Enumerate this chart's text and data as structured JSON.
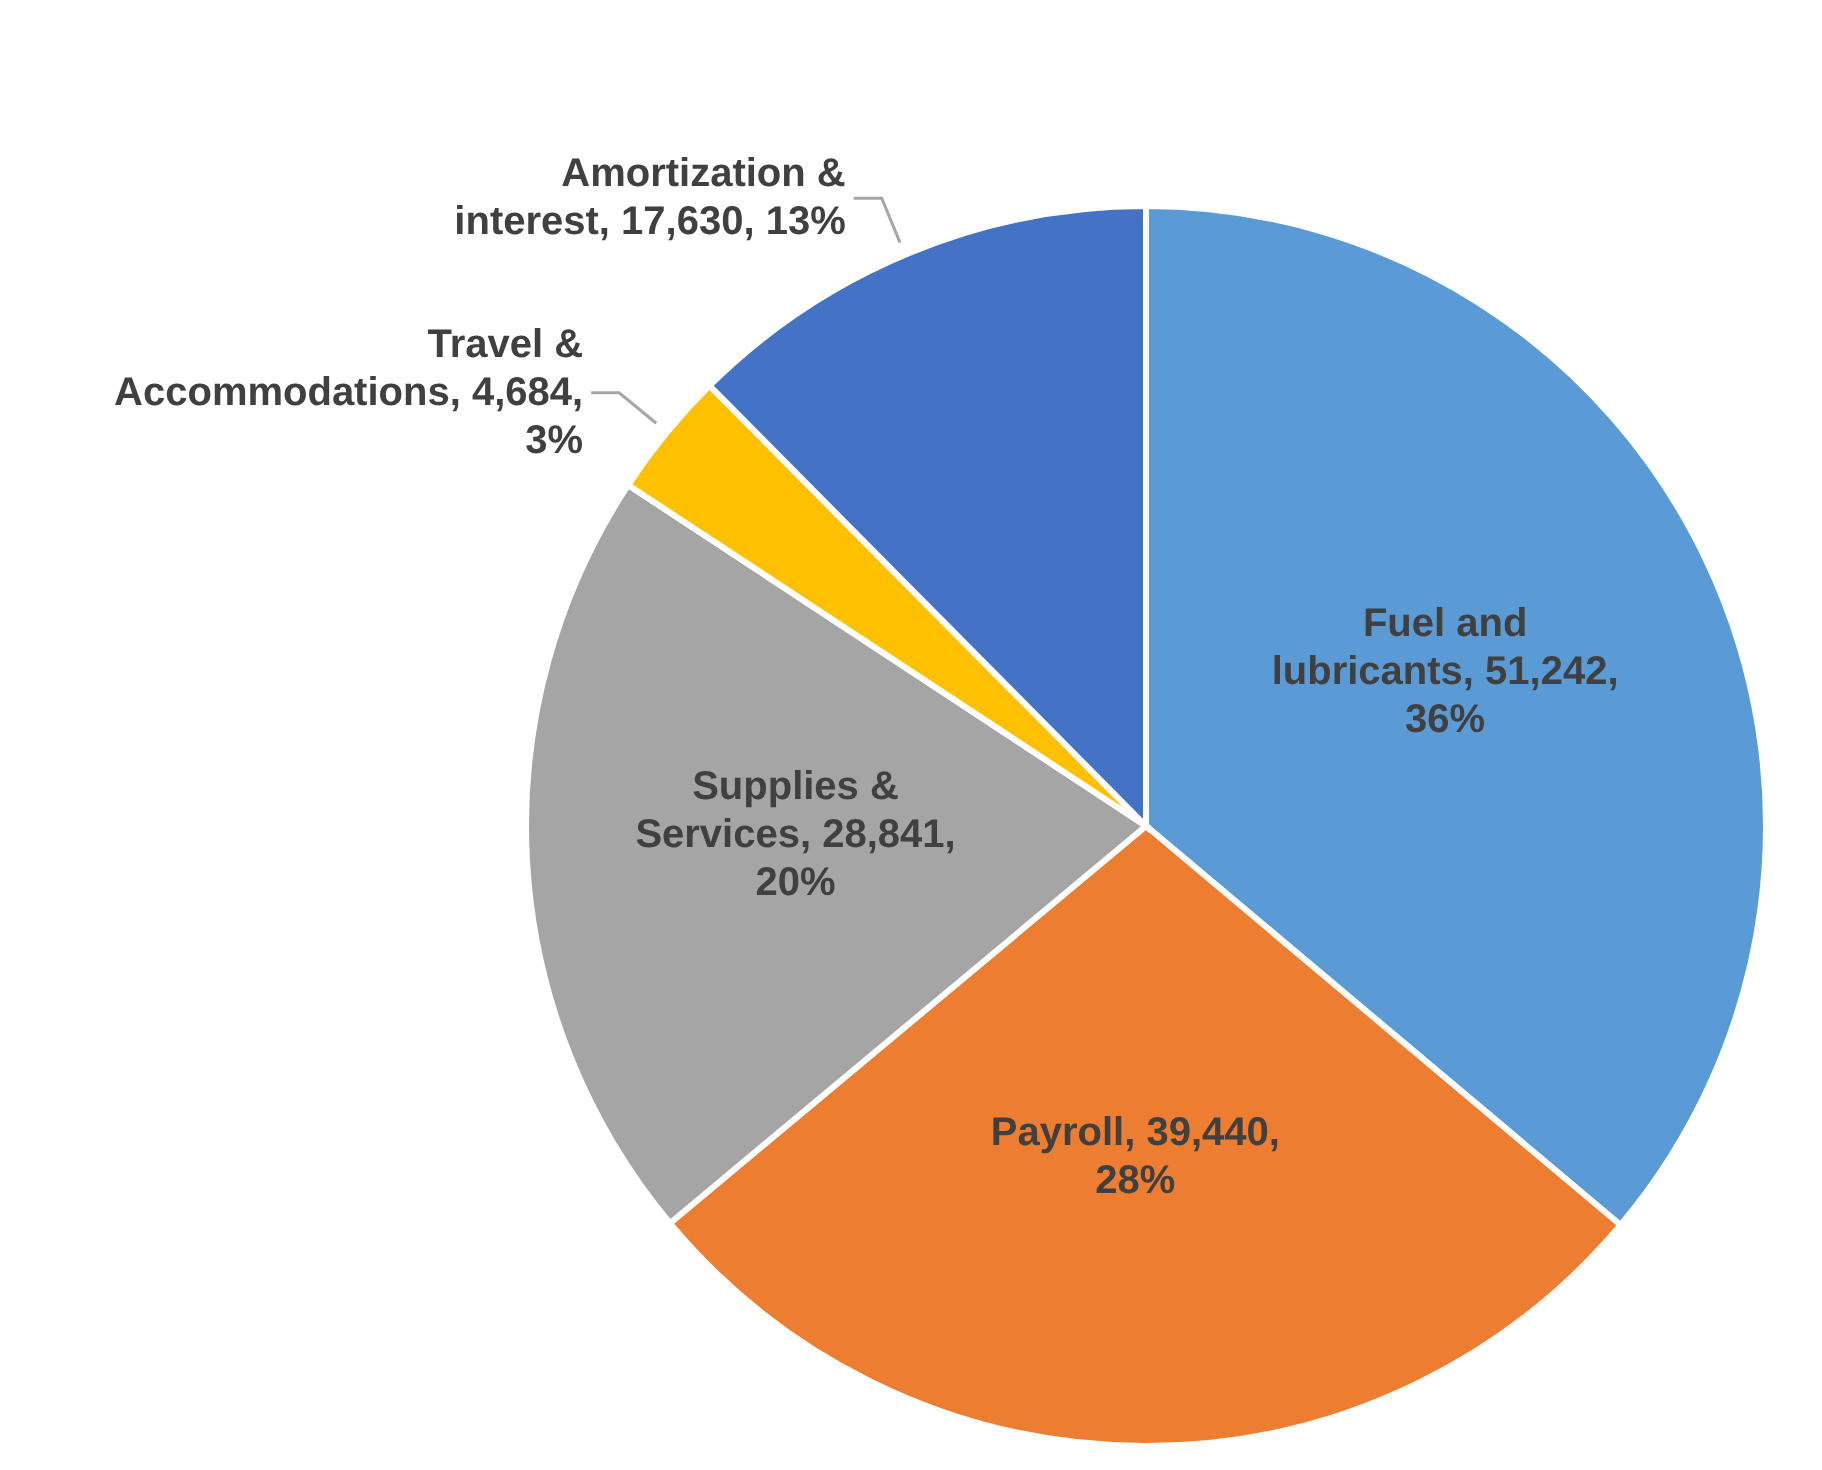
{
  "chart_data": {
    "type": "pie",
    "categories": [
      "Fuel and lubricants",
      "Payroll",
      "Supplies & Services",
      "Travel & Accommodations",
      "Amortization & interest"
    ],
    "values": [
      51242,
      39440,
      28841,
      4684,
      17630
    ],
    "value_labels": [
      "51,242, 36%",
      "39,440, 28%",
      "28,841, 20%",
      "4,684, 3%",
      "17,630, 13%"
    ],
    "colors": [
      "#5b9bd5",
      "#ed7d31",
      "#a5a5a5",
      "#ffc000",
      "#4472c4"
    ]
  }
}
